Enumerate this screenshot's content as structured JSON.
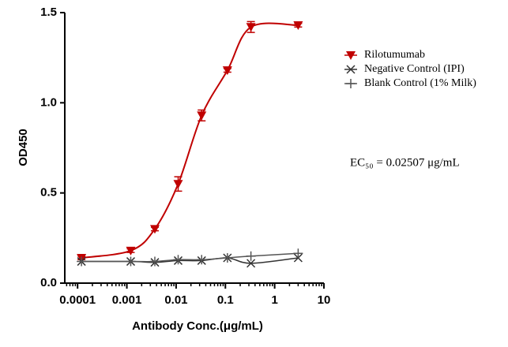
{
  "chart_data": {
    "type": "line",
    "x_label": "Antibody Conc.(μg/mL)",
    "y_label": "OD450",
    "annotation": "EC₅₀ = 0.02507 μg/mL",
    "x_scale": "log",
    "xlim": [
      5.5e-05,
      10
    ],
    "xticks": [
      0.0001,
      0.001,
      0.01,
      0.1,
      1,
      10
    ],
    "ylim": [
      0,
      1.5
    ],
    "yticks": [
      {
        "value": 0,
        "label": "0.0"
      },
      0.5,
      {
        "value": 1,
        "label": "1.0"
      },
      1.5
    ],
    "legend": "upper right",
    "x": [
      0.00012,
      0.0012,
      0.0037,
      0.011,
      0.033,
      0.11,
      0.33,
      3
    ],
    "series": [
      {
        "name": "Rilotumumab",
        "color": "#c00000",
        "marker": "triangle-down",
        "values": [
          0.14,
          0.18,
          0.3,
          0.55,
          0.93,
          1.18,
          1.42,
          1.43
        ],
        "errors": [
          0.01,
          0.01,
          0.01,
          0.04,
          0.03,
          0.01,
          0.03,
          0.01
        ]
      },
      {
        "name": "Negative Control (IPI)",
        "color": "#333333",
        "marker": "x",
        "values": [
          0.12,
          0.12,
          0.115,
          0.125,
          0.125,
          0.14,
          0.11,
          0.14
        ]
      },
      {
        "name": "Blank Control (1% Milk)",
        "color": "#555555",
        "marker": "plus",
        "values": [
          0.12,
          0.12,
          0.12,
          0.13,
          0.13,
          0.14,
          0.15,
          0.165
        ]
      }
    ]
  }
}
